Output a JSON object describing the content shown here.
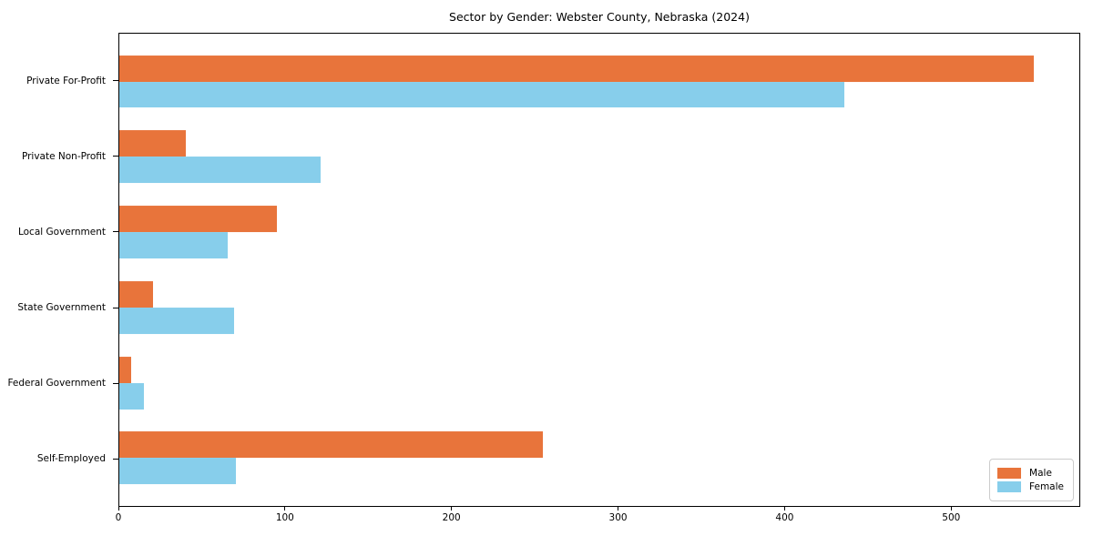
{
  "chart_data": {
    "type": "bar",
    "orientation": "horizontal",
    "title": "Sector by Gender: Webster County, Nebraska (2024)",
    "categories": [
      "Private For-Profit",
      "Private Non-Profit",
      "Local Government",
      "State Government",
      "Federal Government",
      "Self-Employed"
    ],
    "series": [
      {
        "name": "Male",
        "color": "#E8743B",
        "values": [
          550,
          40,
          95,
          20,
          7,
          255
        ]
      },
      {
        "name": "Female",
        "color": "#87CEEB",
        "values": [
          436,
          121,
          65,
          69,
          15,
          70
        ]
      }
    ],
    "xlabel": "",
    "ylabel": "",
    "xlim": [
      0,
      577.5
    ],
    "xticks": [
      0,
      100,
      200,
      300,
      400,
      500
    ],
    "grid": false,
    "legend_position": "lower right",
    "background_color": "#ffffff",
    "axis_color": "#000000"
  }
}
